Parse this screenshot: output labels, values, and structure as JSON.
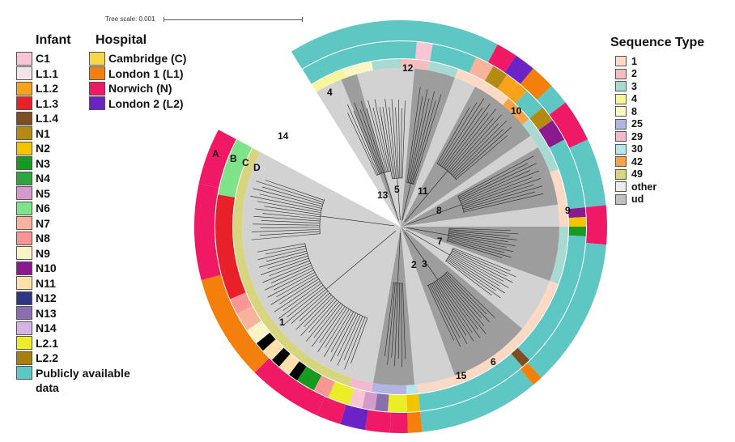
{
  "tree_scale": {
    "label": "Tree scale: 0.001"
  },
  "infant_legend": {
    "title": "Infant",
    "items": [
      {
        "label": "C1",
        "color": "#f6c6d6"
      },
      {
        "label": "L1.1",
        "color": "#f1e4ea"
      },
      {
        "label": "L1.2",
        "color": "#f7a21b"
      },
      {
        "label": "L1.3",
        "color": "#e8202a"
      },
      {
        "label": "L1.4",
        "color": "#7d4e24"
      },
      {
        "label": "N1",
        "color": "#b38a12"
      },
      {
        "label": "N2",
        "color": "#f5c400"
      },
      {
        "label": "N3",
        "color": "#169a21"
      },
      {
        "label": "N4",
        "color": "#31a341"
      },
      {
        "label": "N5",
        "color": "#d49ac9"
      },
      {
        "label": "N6",
        "color": "#7fe389"
      },
      {
        "label": "N7",
        "color": "#f8b39c"
      },
      {
        "label": "N8",
        "color": "#f79693"
      },
      {
        "label": "N9",
        "color": "#fdf3c8"
      },
      {
        "label": "N10",
        "color": "#8a1a8e"
      },
      {
        "label": "N11",
        "color": "#fde1ad"
      },
      {
        "label": "N12",
        "color": "#2f3580"
      },
      {
        "label": "N13",
        "color": "#8a6fb0"
      },
      {
        "label": "N14",
        "color": "#d5b3e4"
      },
      {
        "label": "L2.1",
        "color": "#eced29"
      },
      {
        "label": "L2.2",
        "color": "#a87d12"
      },
      {
        "label": "Publicly available data",
        "color": "#5fc7c3"
      }
    ]
  },
  "hospital_legend": {
    "title": "Hospital",
    "items": [
      {
        "label": "Cambridge (C)",
        "color": "#f9d54a"
      },
      {
        "label": "London 1 (L1)",
        "color": "#f47f0c"
      },
      {
        "label": "Norwich (N)",
        "color": "#f01966"
      },
      {
        "label": "London 2 (L2)",
        "color": "#6b23c5"
      }
    ]
  },
  "st_legend": {
    "title": "Sequence Type",
    "items": [
      {
        "label": "1",
        "color": "#fbd9c4"
      },
      {
        "label": "2",
        "color": "#f5bdbe"
      },
      {
        "label": "3",
        "color": "#a9d9d3"
      },
      {
        "label": "4",
        "color": "#f8f69c"
      },
      {
        "label": "8",
        "color": "#fbf7c4"
      },
      {
        "label": "25",
        "color": "#b2b4e3"
      },
      {
        "label": "29",
        "color": "#f3b9cf"
      },
      {
        "label": "30",
        "color": "#b6e6ec"
      },
      {
        "label": "42",
        "color": "#f6a447"
      },
      {
        "label": "49",
        "color": "#d7d57e"
      },
      {
        "label": "other",
        "color": "#ebebeb"
      },
      {
        "label": "ud",
        "color": "#c0c0c0"
      }
    ]
  },
  "ring_labels": [
    "A",
    "B",
    "C",
    "D"
  ],
  "clades": [
    "1",
    "2",
    "3",
    "4",
    "5",
    "6",
    "7",
    "8",
    "9",
    "10",
    "11",
    "12",
    "13",
    "14",
    "15"
  ],
  "colors": {
    "clade_light": "#d2d2d2",
    "clade_dark": "#9d9d9d",
    "branch": "#222222"
  }
}
